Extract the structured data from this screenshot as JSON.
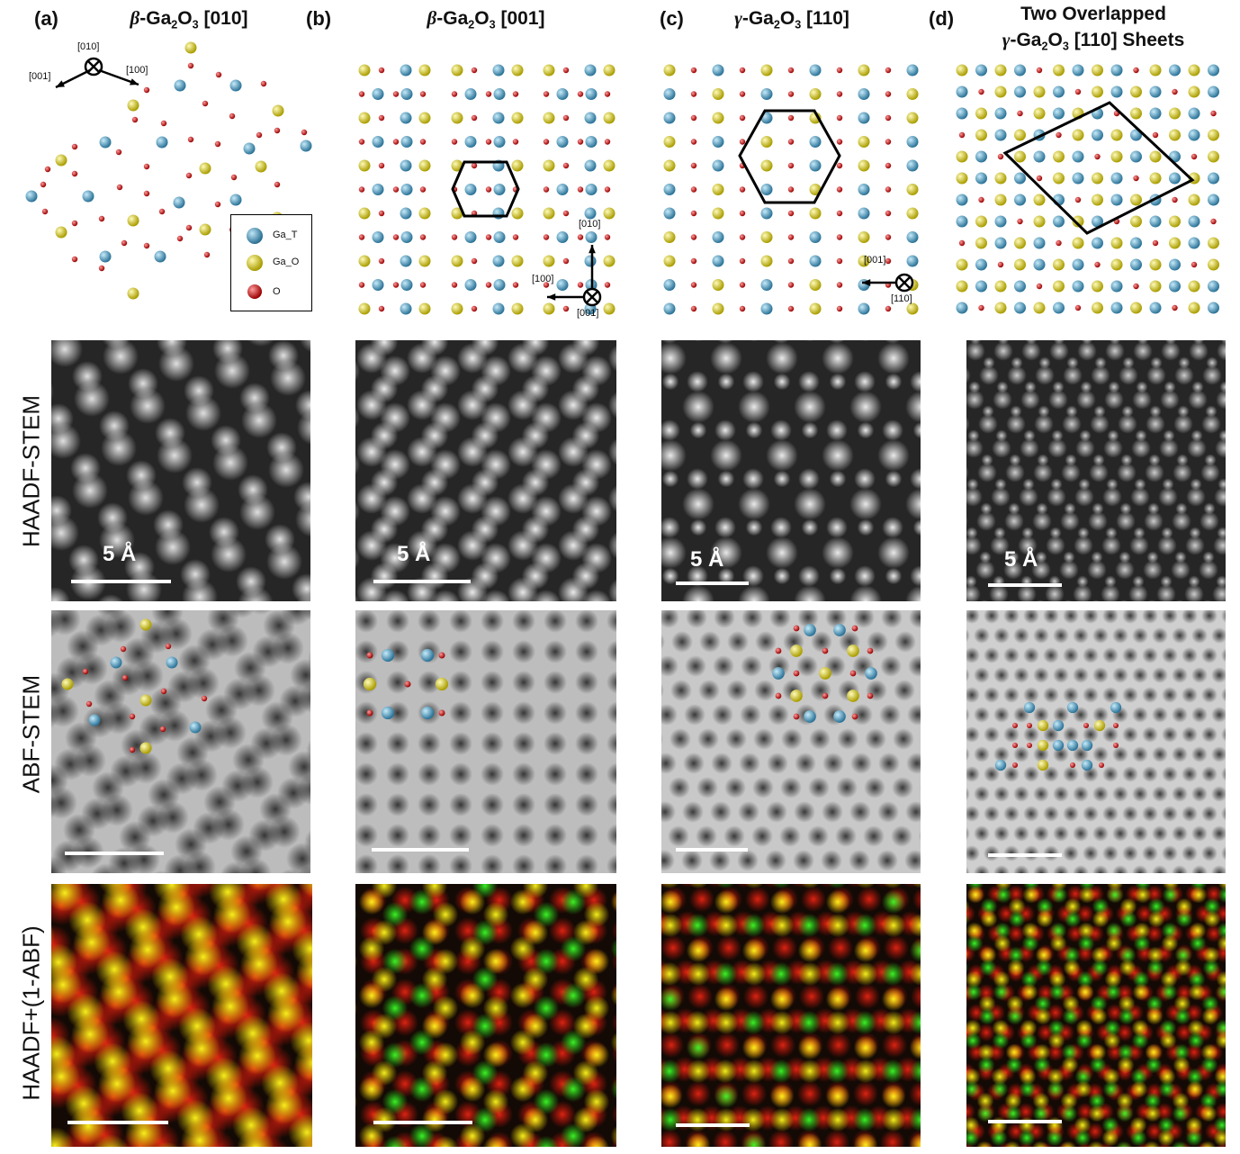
{
  "panels": [
    {
      "letter": "(a)",
      "title_greek": "β",
      "title_pre": "-Ga",
      "title_s1": "2",
      "title_mid": "O",
      "title_s2": "3",
      "title_post": " [010]"
    },
    {
      "letter": "(b)",
      "title_greek": "β",
      "title_pre": "-Ga",
      "title_s1": "2",
      "title_mid": "O",
      "title_s2": "3",
      "title_post": " [001]"
    },
    {
      "letter": "(c)",
      "title_greek": "γ",
      "title_pre": "-Ga",
      "title_s1": "2",
      "title_mid": "O",
      "title_s2": "3",
      "title_post": " [110]"
    },
    {
      "letter": "(d)",
      "title_line1": "Two Overlapped",
      "title_greek": "γ",
      "title_pre": "-Ga",
      "title_s1": "2",
      "title_mid": "O",
      "title_s2": "3",
      "title_post": " [110] Sheets"
    }
  ],
  "row_labels": [
    "HAADF-STEM",
    "ABF-STEM",
    "HAADF+(1-ABF)"
  ],
  "scale_bar_label": "5 Å",
  "legend": [
    {
      "label": "Ga_T",
      "color": "#3f8fb5"
    },
    {
      "label": "Ga_O",
      "color": "#d8cc1e"
    },
    {
      "label": "O",
      "color": "#cc1111"
    }
  ],
  "axes": {
    "a": [
      "[010]",
      "[001]",
      "[100]"
    ],
    "b": [
      "[010]",
      "[100]",
      "[001]"
    ],
    "c": [
      "[001]",
      "[110]"
    ]
  },
  "colors": {
    "ga_t": "#3f8fb5",
    "ga_o": "#d8cc1e",
    "o": "#cc1111"
  }
}
